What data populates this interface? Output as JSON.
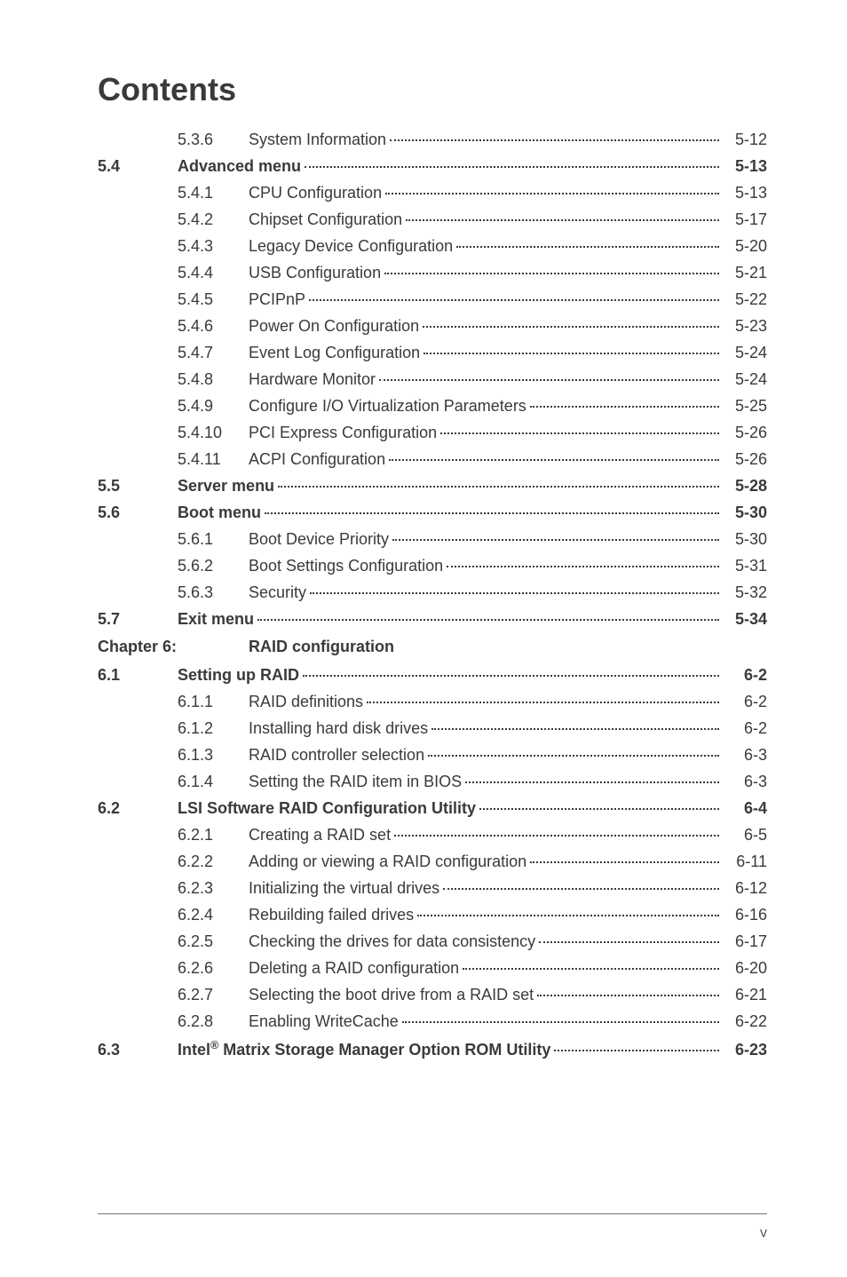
{
  "title": "Contents",
  "footer_page": "v",
  "rows": [
    {
      "type": "entry",
      "a": "",
      "b": "5.3.6",
      "text": "System Information",
      "page": "5-12",
      "bold": false
    },
    {
      "type": "entry",
      "a": "5.4",
      "b": "",
      "text": "Advanced menu",
      "page": "5-13",
      "bold": true
    },
    {
      "type": "entry",
      "a": "",
      "b": "5.4.1",
      "text": "CPU Configuration",
      "page": "5-13",
      "bold": false
    },
    {
      "type": "entry",
      "a": "",
      "b": "5.4.2",
      "text": "Chipset Configuration",
      "page": "5-17",
      "bold": false
    },
    {
      "type": "entry",
      "a": "",
      "b": "5.4.3",
      "text": "Legacy Device Configuration",
      "page": "5-20",
      "bold": false
    },
    {
      "type": "entry",
      "a": "",
      "b": "5.4.4",
      "text": "USB Configuration",
      "page": "5-21",
      "bold": false
    },
    {
      "type": "entry",
      "a": "",
      "b": "5.4.5",
      "text": "PCIPnP",
      "page": "5-22",
      "bold": false
    },
    {
      "type": "entry",
      "a": "",
      "b": "5.4.6",
      "text": "Power On Configuration",
      "page": "5-23",
      "bold": false
    },
    {
      "type": "entry",
      "a": "",
      "b": "5.4.7",
      "text": "Event Log Configuration",
      "page": "5-24",
      "bold": false
    },
    {
      "type": "entry",
      "a": "",
      "b": "5.4.8",
      "text": "Hardware Monitor",
      "page": "5-24",
      "bold": false
    },
    {
      "type": "entry",
      "a": "",
      "b": "5.4.9",
      "text": "Configure I/O Virtualization Parameters",
      "page": "5-25",
      "bold": false
    },
    {
      "type": "entry",
      "a": "",
      "b": "5.4.10",
      "text": "PCI Express Configuration",
      "page": "5-26",
      "bold": false
    },
    {
      "type": "entry",
      "a": "",
      "b": "5.4.11",
      "text": "ACPI Configuration",
      "page": "5-26",
      "bold": false
    },
    {
      "type": "entry",
      "a": "5.5",
      "b": "",
      "text": "Server menu",
      "page": "5-28",
      "bold": true
    },
    {
      "type": "entry",
      "a": "5.6",
      "b": "",
      "text": "Boot menu",
      "page": "5-30",
      "bold": true
    },
    {
      "type": "entry",
      "a": "",
      "b": "5.6.1",
      "text": "Boot Device Priority",
      "page": "5-30",
      "bold": false
    },
    {
      "type": "entry",
      "a": "",
      "b": "5.6.2",
      "text": "Boot Settings Configuration",
      "page": "5-31",
      "bold": false
    },
    {
      "type": "entry",
      "a": "",
      "b": "5.6.3",
      "text": "Security",
      "page": "5-32",
      "bold": false
    },
    {
      "type": "entry",
      "a": "5.7",
      "b": "",
      "text": "Exit menu",
      "page": "5-34",
      "bold": true
    },
    {
      "type": "chapter",
      "label": "Chapter 6:",
      "title": "RAID configuration"
    },
    {
      "type": "entry",
      "a": "6.1",
      "b": "",
      "text": "Setting up RAID",
      "page": "6-2",
      "bold": true
    },
    {
      "type": "entry",
      "a": "",
      "b": "6.1.1",
      "text": "RAID definitions",
      "page": "6-2",
      "bold": false
    },
    {
      "type": "entry",
      "a": "",
      "b": "6.1.2",
      "text": "Installing hard disk drives",
      "page": "6-2",
      "bold": false
    },
    {
      "type": "entry",
      "a": "",
      "b": "6.1.3",
      "text": "RAID controller selection",
      "page": "6-3",
      "bold": false
    },
    {
      "type": "entry",
      "a": "",
      "b": "6.1.4",
      "text": "Setting the RAID item in BIOS",
      "page": "6-3",
      "bold": false
    },
    {
      "type": "entry",
      "a": "6.2",
      "b": "",
      "text": "LSI Software RAID Configuration Utility",
      "page": "6-4",
      "bold": true
    },
    {
      "type": "entry",
      "a": "",
      "b": "6.2.1",
      "text": "Creating a RAID set",
      "page": "6-5",
      "bold": false
    },
    {
      "type": "entry",
      "a": "",
      "b": "6.2.2",
      "text": "Adding or viewing a RAID configuration",
      "page": "6-11",
      "bold": false
    },
    {
      "type": "entry",
      "a": "",
      "b": "6.2.3",
      "text": "Initializing the virtual drives",
      "page": "6-12",
      "bold": false
    },
    {
      "type": "entry",
      "a": "",
      "b": "6.2.4",
      "text": "Rebuilding failed drives",
      "page": "6-16",
      "bold": false
    },
    {
      "type": "entry",
      "a": "",
      "b": "6.2.5",
      "text": "Checking the drives for data consistency",
      "page": "6-17",
      "bold": false
    },
    {
      "type": "entry",
      "a": "",
      "b": "6.2.6",
      "text": "Deleting a RAID configuration",
      "page": "6-20",
      "bold": false
    },
    {
      "type": "entry",
      "a": "",
      "b": "6.2.7",
      "text": "Selecting the boot drive from a RAID set",
      "page": "6-21",
      "bold": false
    },
    {
      "type": "entry",
      "a": "",
      "b": "6.2.8",
      "text": "Enabling WriteCache",
      "page": "6-22",
      "bold": false
    },
    {
      "type": "entry",
      "a": "6.3",
      "b": "",
      "text_html": "Intel<sup>®</sup> Matrix Storage Manager Option ROM Utility",
      "page": "6-23",
      "bold": true
    }
  ]
}
